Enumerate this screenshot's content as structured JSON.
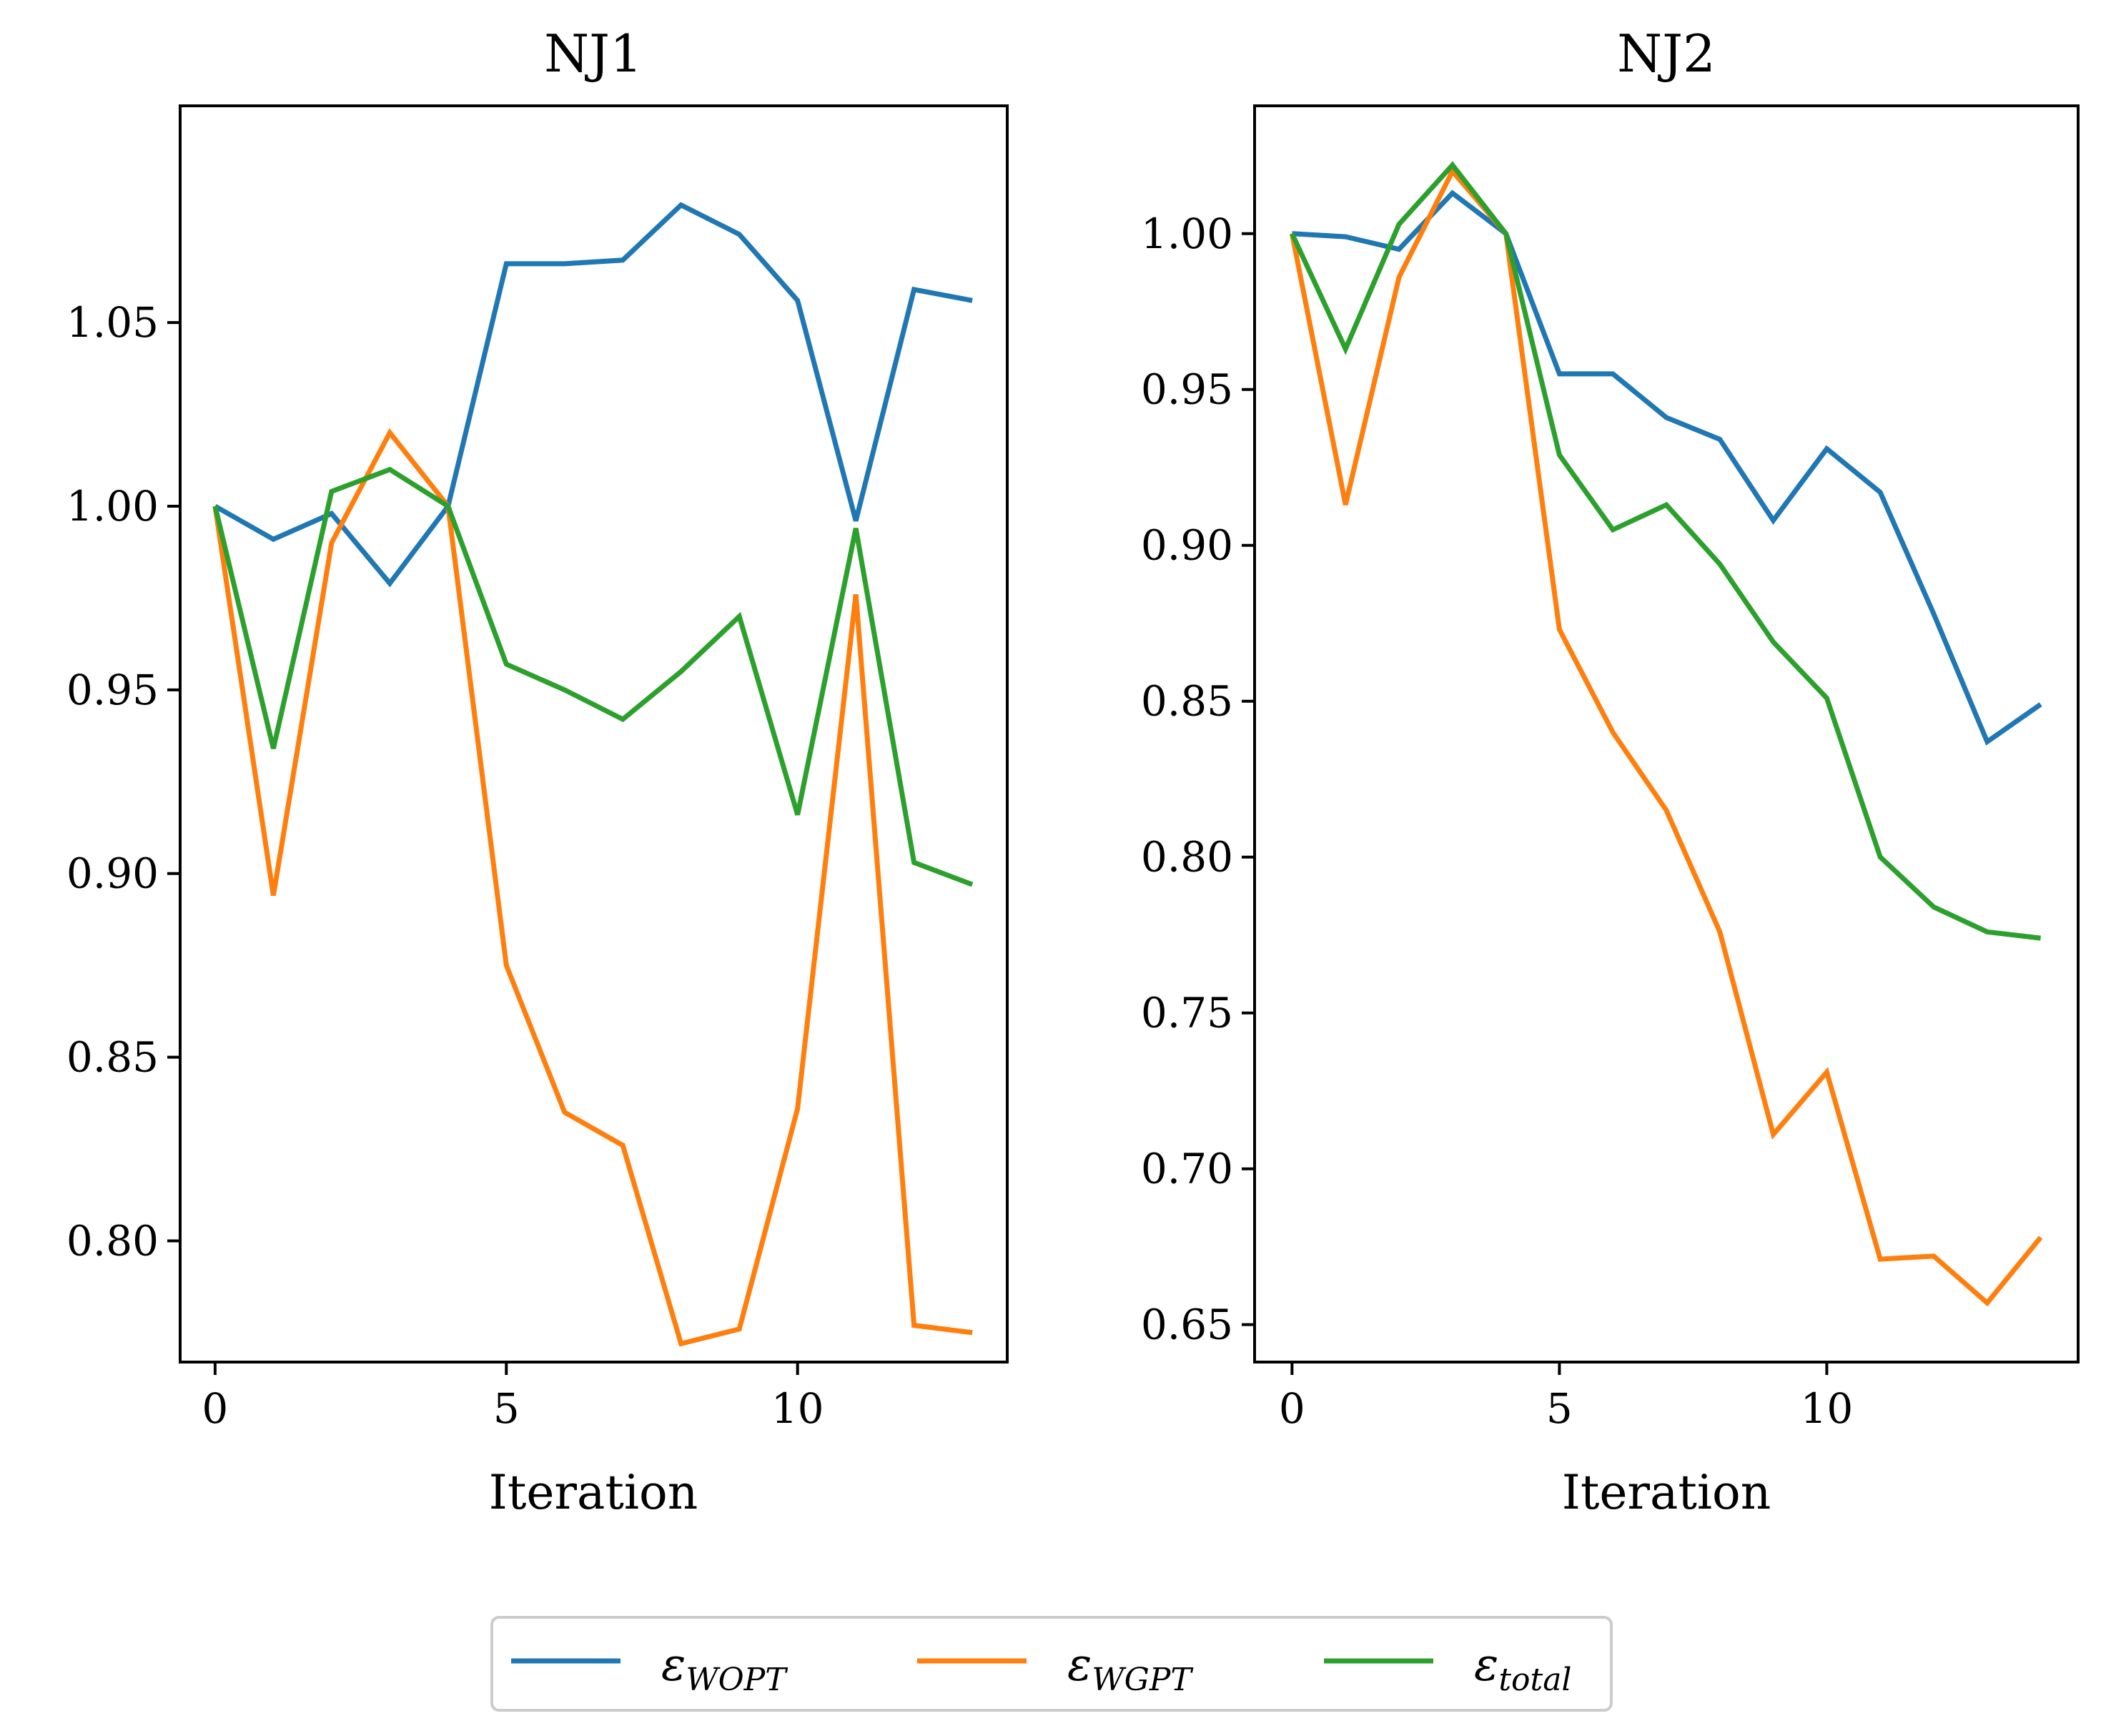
{
  "chart_data": [
    {
      "type": "line",
      "title": "NJ1",
      "xlabel": "Iteration",
      "ylabel": "",
      "xlim": [
        -0.6,
        13.6
      ],
      "ylim": [
        0.767,
        1.109
      ],
      "xticks": [
        0,
        5,
        10
      ],
      "xtick_labels": [
        "0",
        "5",
        "10"
      ],
      "yticks": [
        0.8,
        0.85,
        0.9,
        0.95,
        1.0,
        1.05
      ],
      "ytick_labels": [
        "0.80",
        "0.85",
        "0.90",
        "0.95",
        "1.00",
        "1.05"
      ],
      "x": [
        0,
        1,
        2,
        3,
        4,
        5,
        6,
        7,
        8,
        9,
        10,
        11,
        12,
        13
      ],
      "series": [
        {
          "name": "WOPT",
          "color": "#1f77b4",
          "values": [
            1.0,
            0.991,
            0.998,
            0.979,
            1.0,
            1.066,
            1.066,
            1.067,
            1.082,
            1.074,
            1.056,
            0.996,
            1.059,
            1.056
          ]
        },
        {
          "name": "WGPT",
          "color": "#ff7f0e",
          "values": [
            1.0,
            0.894,
            0.99,
            1.02,
            1.0,
            0.875,
            0.835,
            0.826,
            0.772,
            0.776,
            0.836,
            0.976,
            0.777,
            0.775
          ]
        },
        {
          "name": "total",
          "color": "#2ca02c",
          "values": [
            1.0,
            0.934,
            1.004,
            1.01,
            1.0,
            0.957,
            0.95,
            0.942,
            0.955,
            0.97,
            0.916,
            0.994,
            0.903,
            0.897
          ]
        }
      ]
    },
    {
      "type": "line",
      "title": "NJ2",
      "xlabel": "Iteration",
      "ylabel": "",
      "xlim": [
        -0.7,
        14.7
      ],
      "ylim": [
        0.638,
        1.041
      ],
      "xticks": [
        0,
        5,
        10
      ],
      "xtick_labels": [
        "0",
        "5",
        "10"
      ],
      "yticks": [
        0.65,
        0.7,
        0.75,
        0.8,
        0.85,
        0.9,
        0.95,
        1.0
      ],
      "ytick_labels": [
        "0.65",
        "0.70",
        "0.75",
        "0.80",
        "0.85",
        "0.90",
        "0.95",
        "1.00"
      ],
      "x": [
        0,
        1,
        2,
        3,
        4,
        5,
        6,
        7,
        8,
        9,
        10,
        11,
        12,
        13,
        14
      ],
      "series": [
        {
          "name": "WOPT",
          "color": "#1f77b4",
          "values": [
            1.0,
            0.999,
            0.995,
            1.013,
            1.0,
            0.955,
            0.955,
            0.941,
            0.934,
            0.908,
            0.931,
            0.917,
            0.878,
            0.837,
            0.849
          ]
        },
        {
          "name": "WGPT",
          "color": "#ff7f0e",
          "values": [
            1.0,
            0.913,
            0.986,
            1.02,
            1.0,
            0.873,
            0.84,
            0.815,
            0.776,
            0.711,
            0.731,
            0.671,
            0.672,
            0.657,
            0.678
          ]
        },
        {
          "name": "total",
          "color": "#2ca02c",
          "values": [
            1.0,
            0.963,
            1.003,
            1.022,
            1.0,
            0.929,
            0.905,
            0.913,
            0.894,
            0.869,
            0.851,
            0.8,
            0.784,
            0.776,
            0.774
          ]
        }
      ]
    }
  ],
  "legend": {
    "placement": "bottom-center",
    "symbol": "ε",
    "entries": [
      {
        "name": "WOPT",
        "color": "#1f77b4"
      },
      {
        "name": "WGPT",
        "color": "#ff7f0e"
      },
      {
        "name": "total",
        "color": "#2ca02c"
      }
    ]
  }
}
